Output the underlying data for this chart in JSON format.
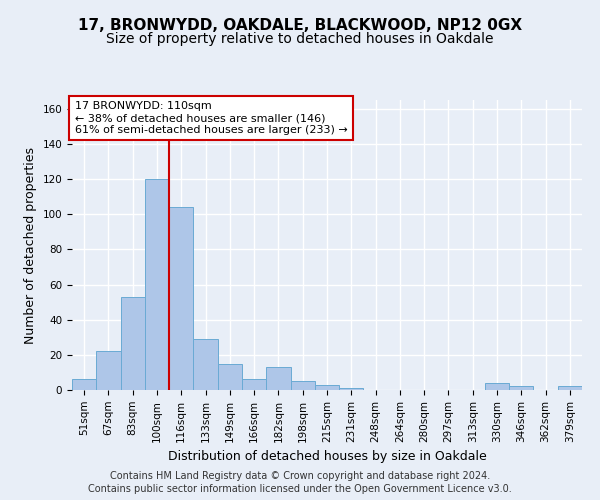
{
  "title_line1": "17, BRONWYDD, OAKDALE, BLACKWOOD, NP12 0GX",
  "title_line2": "Size of property relative to detached houses in Oakdale",
  "xlabel": "Distribution of detached houses by size in Oakdale",
  "ylabel": "Number of detached properties",
  "categories": [
    "51sqm",
    "67sqm",
    "83sqm",
    "100sqm",
    "116sqm",
    "133sqm",
    "149sqm",
    "166sqm",
    "182sqm",
    "198sqm",
    "215sqm",
    "231sqm",
    "248sqm",
    "264sqm",
    "280sqm",
    "297sqm",
    "313sqm",
    "330sqm",
    "346sqm",
    "362sqm",
    "379sqm"
  ],
  "values": [
    6,
    22,
    53,
    120,
    104,
    29,
    15,
    6,
    13,
    5,
    3,
    1,
    0,
    0,
    0,
    0,
    0,
    4,
    2,
    0,
    2
  ],
  "bar_color": "#aec6e8",
  "bar_edge_color": "#6aaad4",
  "vline_x": 3.5,
  "vline_color": "#cc0000",
  "annotation_text": "17 BRONWYDD: 110sqm\n← 38% of detached houses are smaller (146)\n61% of semi-detached houses are larger (233) →",
  "annotation_box_color": "#ffffff",
  "annotation_box_edge": "#cc0000",
  "ylim": [
    0,
    165
  ],
  "yticks": [
    0,
    20,
    40,
    60,
    80,
    100,
    120,
    140,
    160
  ],
  "background_color": "#e8eef7",
  "grid_color": "#ffffff",
  "footer_line1": "Contains HM Land Registry data © Crown copyright and database right 2024.",
  "footer_line2": "Contains public sector information licensed under the Open Government Licence v3.0.",
  "title_fontsize": 11,
  "subtitle_fontsize": 10,
  "axis_label_fontsize": 9,
  "tick_fontsize": 7.5,
  "annotation_fontsize": 8,
  "footer_fontsize": 7
}
